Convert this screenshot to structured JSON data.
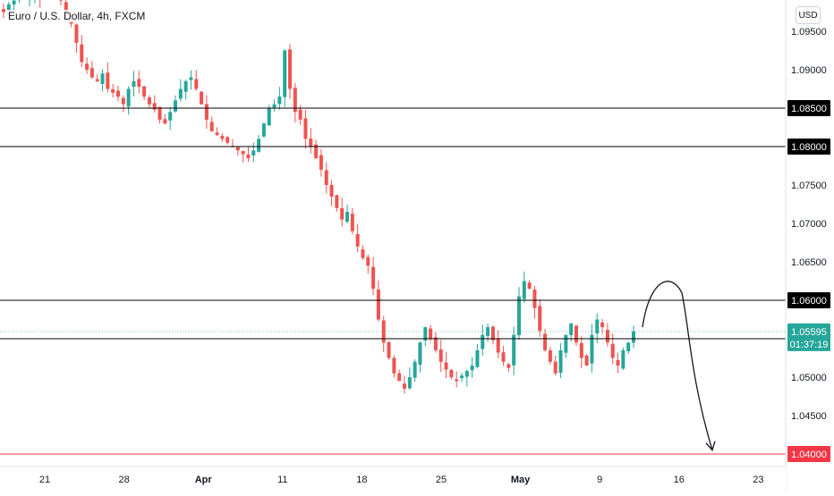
{
  "chart_header": {
    "title": "Euro / U.S. Dollar, 4h, FXCM",
    "currency_button": "USD"
  },
  "colors": {
    "up": "#26a69a",
    "down": "#ef5350",
    "level_line": "#000000",
    "target_line": "#f23645",
    "current_price": "#26a69a"
  },
  "current_price": {
    "value": "1.05595",
    "countdown": "01:37:19"
  },
  "chart_data": {
    "type": "candlestick",
    "ylim": [
      1.03,
      1.1
    ],
    "price_ticks": [
      1.095,
      1.09,
      1.085,
      1.08,
      1.075,
      1.07,
      1.065,
      1.06,
      1.055,
      1.05,
      1.045,
      1.04
    ],
    "price_tick_labels": [
      "1.09500",
      "1.09000",
      "1.08500",
      "1.08000",
      "1.07500",
      "1.07000",
      "1.06500",
      "1.06000",
      "1.05500",
      "1.05000",
      "1.04500",
      "1.04000"
    ],
    "x_ticks": [
      {
        "label": "21",
        "bold": false
      },
      {
        "label": "28",
        "bold": false
      },
      {
        "label": "Apr",
        "bold": true
      },
      {
        "label": "11",
        "bold": false
      },
      {
        "label": "18",
        "bold": false
      },
      {
        "label": "25",
        "bold": false
      },
      {
        "label": "May",
        "bold": true
      },
      {
        "label": "9",
        "bold": false
      },
      {
        "label": "16",
        "bold": false
      },
      {
        "label": "23",
        "bold": false
      }
    ],
    "horizontal_levels": [
      {
        "price": 1.085,
        "label": "1.08500",
        "style": "black"
      },
      {
        "price": 1.08,
        "label": "1.08000",
        "style": "black"
      },
      {
        "price": 1.06,
        "label": "1.06000",
        "style": "black"
      },
      {
        "price": 1.055,
        "label": "1.05500",
        "style": "black"
      },
      {
        "price": 1.04,
        "label": "1.04000",
        "style": "red"
      }
    ],
    "close_path": [
      1.0975,
      1.0985,
      1.099,
      1.0995,
      1.0992,
      1.0996,
      1.0998,
      1.0994,
      1.0997,
      1.0999,
      1.0995,
      1.099,
      1.097,
      1.096,
      1.0935,
      1.091,
      1.09,
      1.089,
      1.0885,
      1.0895,
      1.0875,
      1.087,
      1.0865,
      1.0855,
      1.0875,
      1.0885,
      1.0878,
      1.0865,
      1.0855,
      1.0848,
      1.0835,
      1.083,
      1.0845,
      1.086,
      1.0875,
      1.0885,
      1.089,
      1.0875,
      1.0855,
      1.0835,
      1.082,
      1.0815,
      1.081,
      1.0805,
      1.08,
      1.0795,
      1.079,
      1.0785,
      1.0795,
      1.081,
      1.083,
      1.085,
      1.0855,
      1.0865,
      1.0925,
      1.0875,
      1.0845,
      1.0835,
      1.081,
      1.08,
      1.0785,
      1.077,
      1.075,
      1.0735,
      1.072,
      1.0705,
      1.0715,
      1.069,
      1.067,
      1.0655,
      1.0645,
      1.0615,
      1.0575,
      1.0545,
      1.0525,
      1.0505,
      1.0495,
      1.0485,
      1.05,
      1.052,
      1.0545,
      1.0565,
      1.055,
      1.0535,
      1.052,
      1.051,
      1.05,
      1.0495,
      1.0502,
      1.0508,
      1.0515,
      1.0535,
      1.0555,
      1.0565,
      1.0548,
      1.0532,
      1.052,
      1.0512,
      1.0555,
      1.0605,
      1.0625,
      1.0615,
      1.059,
      1.056,
      1.0535,
      1.052,
      1.0505,
      1.0535,
      1.0555,
      1.057,
      1.0545,
      1.0525,
      1.0515,
      1.0555,
      1.0575,
      1.0565,
      1.0545,
      1.0525,
      1.0515,
      1.0535,
      1.0545,
      1.05595
    ],
    "forecast_drawing": {
      "type": "hand-drawn-arrow",
      "from_price": 1.0565,
      "peak_price": 1.0612,
      "to_price": 1.0405
    }
  }
}
